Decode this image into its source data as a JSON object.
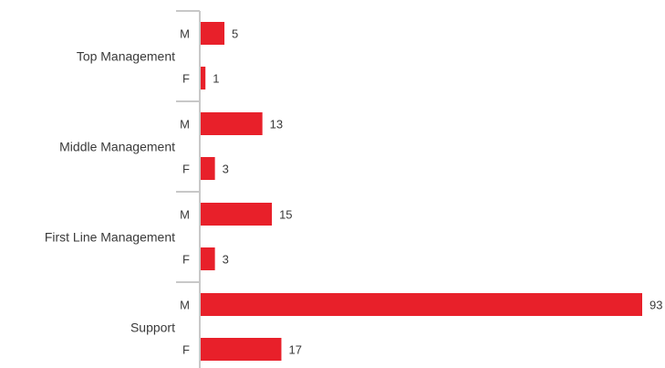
{
  "chart_data": {
    "type": "bar",
    "orientation": "horizontal",
    "grouped": true,
    "title": "",
    "xlabel": "",
    "ylabel": "",
    "groups": [
      {
        "label": "Top Management",
        "bars": [
          {
            "category": "M",
            "value": 5
          },
          {
            "category": "F",
            "value": 1
          }
        ]
      },
      {
        "label": "Middle Management",
        "bars": [
          {
            "category": "M",
            "value": 13
          },
          {
            "category": "F",
            "value": 3
          }
        ]
      },
      {
        "label": "First Line Management",
        "bars": [
          {
            "category": "M",
            "value": 15
          },
          {
            "category": "F",
            "value": 3
          }
        ]
      },
      {
        "label": "Support",
        "bars": [
          {
            "category": "M",
            "value": 93
          },
          {
            "category": "F",
            "value": 17
          }
        ]
      }
    ],
    "xlim": [
      0,
      93
    ],
    "grid": false,
    "legend": "none",
    "colors": {
      "bar": "#e8202a",
      "axis": "#c8c8c8",
      "text": "#3a3a3a"
    }
  }
}
